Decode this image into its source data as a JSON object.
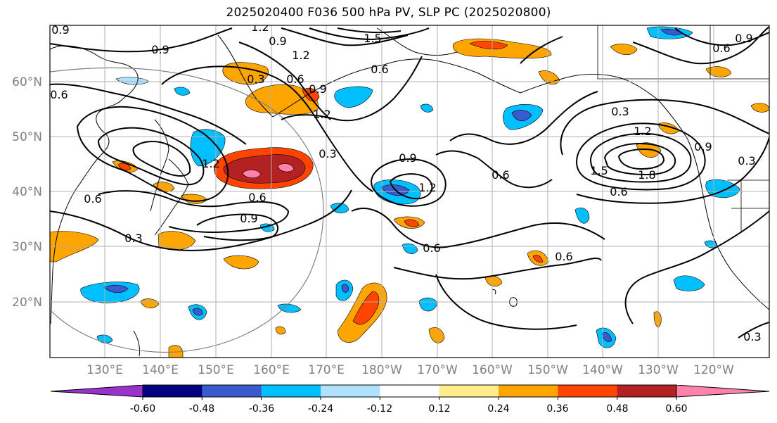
{
  "title": "2025020400 F036 500 hPa PV, SLP PC (2025020800)",
  "lat_labels": [
    "60°N",
    "50°N",
    "40°N",
    "30°N",
    "20°N"
  ],
  "lon_labels": [
    "130°E",
    "140°E",
    "150°E",
    "160°E",
    "170°E",
    "180°W",
    "170°W",
    "160°W",
    "150°W",
    "140°W",
    "130°W",
    "120°W"
  ],
  "colorbar": {
    "colors": [
      "#9932cc",
      "#000080",
      "#3a5bd0",
      "#00bfff",
      "#b0e2ff",
      "#ffffff",
      "#ffec8b",
      "#ffa500",
      "#ff4500",
      "#b22222",
      "#ff82ab"
    ],
    "tick_labels": [
      "-0.60",
      "-0.48",
      "-0.36",
      "-0.24",
      "-0.12",
      "0.12",
      "0.24",
      "0.36",
      "0.48",
      "0.60"
    ]
  },
  "contour_labels": [
    "0.9",
    "1.2",
    "1.5",
    "0.9",
    "0.6",
    "1.2",
    "0.3",
    "0.6",
    "0.9",
    "1.2",
    "0.9",
    "0.6",
    "1.2",
    "0.3",
    "0.6",
    "0.9",
    "0.3",
    "0.6",
    "0.9",
    "1.2",
    "0.6",
    "0.6",
    "0.6",
    "0.3",
    "1.2",
    "1.5",
    "1.8",
    "0.6",
    "0.9",
    "0.6",
    "0.9",
    "0.3",
    "0.3"
  ]
}
